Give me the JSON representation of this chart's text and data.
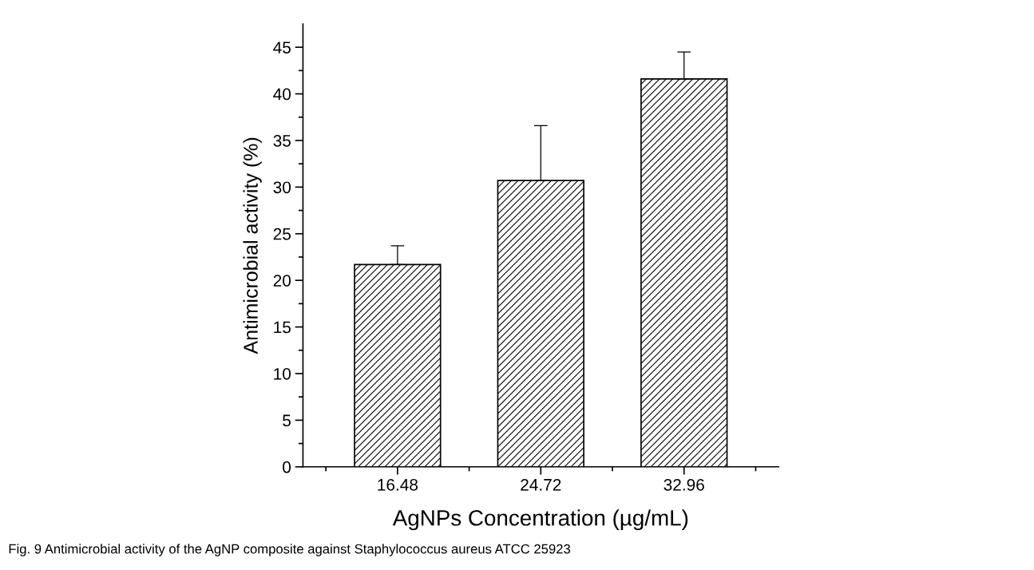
{
  "chart_data": {
    "type": "bar",
    "xlabel": "AgNPs Concentration (µg/mL)",
    "ylabel": "Antimicrobial activity (%)",
    "categories": [
      "16.48",
      "24.72",
      "32.96"
    ],
    "values": [
      21.7,
      30.7,
      41.6
    ],
    "errors": [
      [
        21.7,
        23.7
      ],
      [
        30.7,
        36.6
      ],
      [
        41.6,
        44.5
      ]
    ],
    "color": "#000000",
    "ylim": [
      0,
      47.5
    ],
    "yticks": [
      0,
      5,
      10,
      15,
      20,
      25,
      30,
      35,
      40,
      45
    ],
    "grid": false,
    "legend": false,
    "annotations": [
      "Fig. 9 Antimicrobial activity of the AgNP composite against Staphylococcus aureus ATCC 25923"
    ]
  }
}
